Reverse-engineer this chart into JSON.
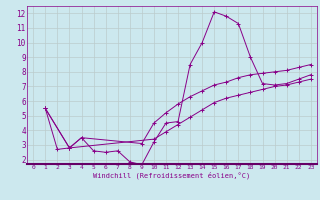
{
  "xlabel": "Windchill (Refroidissement éolien,°C)",
  "background_color": "#cce8ee",
  "grid_color": "#bbcccc",
  "line_color": "#880088",
  "xlim": [
    -0.5,
    23.5
  ],
  "ylim": [
    1.7,
    12.5
  ],
  "xticks": [
    0,
    1,
    2,
    3,
    4,
    5,
    6,
    7,
    8,
    9,
    10,
    11,
    12,
    13,
    14,
    15,
    16,
    17,
    18,
    19,
    20,
    21,
    22,
    23
  ],
  "yticks": [
    2,
    3,
    4,
    5,
    6,
    7,
    8,
    9,
    10,
    11,
    12
  ],
  "series": [
    {
      "x": [
        1,
        2,
        3,
        4,
        5,
        6,
        7,
        8,
        9,
        10,
        11,
        12,
        13,
        14,
        15,
        16,
        17,
        18,
        19,
        20,
        21,
        22,
        23
      ],
      "y": [
        5.5,
        2.7,
        2.8,
        3.5,
        2.6,
        2.5,
        2.6,
        1.85,
        1.65,
        3.2,
        4.5,
        4.6,
        8.5,
        10.0,
        12.1,
        11.8,
        11.3,
        9.0,
        7.2,
        7.1,
        7.2,
        7.5,
        7.8
      ]
    },
    {
      "x": [
        1,
        3,
        4,
        9,
        10,
        11,
        12,
        13,
        14,
        15,
        16,
        17,
        18,
        19,
        20,
        21,
        22,
        23
      ],
      "y": [
        5.5,
        2.8,
        3.5,
        3.1,
        4.5,
        5.2,
        5.8,
        6.3,
        6.7,
        7.1,
        7.3,
        7.6,
        7.8,
        7.9,
        8.0,
        8.1,
        8.3,
        8.5
      ]
    },
    {
      "x": [
        1,
        3,
        10,
        11,
        12,
        13,
        14,
        15,
        16,
        17,
        18,
        19,
        20,
        21,
        22,
        23
      ],
      "y": [
        5.5,
        2.8,
        3.4,
        3.9,
        4.4,
        4.9,
        5.4,
        5.9,
        6.2,
        6.4,
        6.6,
        6.8,
        7.0,
        7.1,
        7.3,
        7.5
      ]
    }
  ]
}
